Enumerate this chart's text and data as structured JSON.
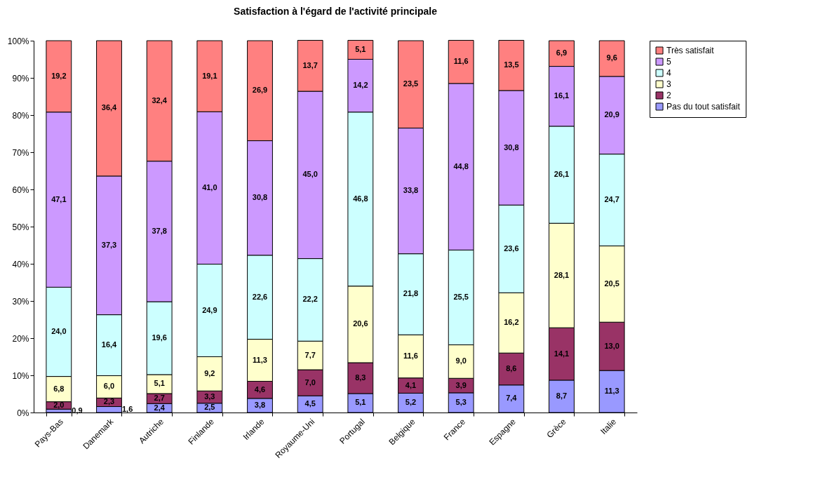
{
  "chart_data": {
    "type": "bar",
    "title": "Satisfaction à l'égard de l'activité principale",
    "stacked": true,
    "legend": "right",
    "categories": [
      "Pays-Bas",
      "Danemark",
      "Autriche",
      "Finlande",
      "Irlande",
      "Royaume-Uni",
      "Portugal",
      "Belgique",
      "France",
      "Espagne",
      "Grèce",
      "Italie"
    ],
    "ylim": [
      0,
      100
    ],
    "yticks": [
      {
        "value": 0,
        "label": "0%"
      },
      {
        "value": 10,
        "label": "10%"
      },
      {
        "value": 20,
        "label": "20%"
      },
      {
        "value": 30,
        "label": "30%"
      },
      {
        "value": 40,
        "label": "40%"
      },
      {
        "value": 50,
        "label": "50%"
      },
      {
        "value": 60,
        "label": "60%"
      },
      {
        "value": 70,
        "label": "70%"
      },
      {
        "value": 80,
        "label": "80%"
      },
      {
        "value": 90,
        "label": "90%"
      },
      {
        "value": 100,
        "label": "100%"
      }
    ],
    "series": [
      {
        "name": "Pas du tout satisfait",
        "color": "#9999ff",
        "values": [
          0.9,
          1.6,
          2.4,
          2.5,
          3.8,
          4.5,
          5.1,
          5.2,
          5.3,
          7.4,
          8.7,
          11.3
        ],
        "value_labels": [
          "0,9",
          "1,6",
          "2,4",
          "2,5",
          "3,8",
          "4,5",
          "5,1",
          "5,2",
          "5,3",
          "7,4",
          "8,7",
          "11,3"
        ]
      },
      {
        "name": "2",
        "color": "#993366",
        "values": [
          2.0,
          2.3,
          2.7,
          3.3,
          4.6,
          7.0,
          8.3,
          4.1,
          3.9,
          8.6,
          14.1,
          13.0
        ],
        "value_labels": [
          "2,0",
          "2,3",
          "2,7",
          "3,3",
          "4,6",
          "7,0",
          "8,3",
          "4,1",
          "3,9",
          "8,6",
          "14,1",
          "13,0"
        ]
      },
      {
        "name": "3",
        "color": "#ffffcc",
        "values": [
          6.8,
          6.0,
          5.1,
          9.2,
          11.3,
          7.7,
          20.6,
          11.6,
          9.0,
          16.2,
          28.1,
          20.5
        ],
        "value_labels": [
          "6,8",
          "6,0",
          "5,1",
          "9,2",
          "11,3",
          "7,7",
          "20,6",
          "11,6",
          "9,0",
          "16,2",
          "28,1",
          "20,5"
        ]
      },
      {
        "name": "4",
        "color": "#ccffff",
        "values": [
          24.0,
          16.4,
          19.6,
          24.9,
          22.6,
          22.2,
          46.8,
          21.8,
          25.5,
          23.6,
          26.1,
          24.7
        ],
        "value_labels": [
          "24,0",
          "16,4",
          "19,6",
          "24,9",
          "22,6",
          "22,2",
          "46,8",
          "21,8",
          "25,5",
          "23,6",
          "26,1",
          "24,7"
        ]
      },
      {
        "name": "5",
        "color": "#cc99ff",
        "values": [
          47.1,
          37.3,
          37.8,
          41.0,
          30.8,
          45.0,
          14.2,
          33.8,
          44.8,
          30.8,
          16.1,
          20.9
        ],
        "value_labels": [
          "47,1",
          "37,3",
          "37,8",
          "41,0",
          "30,8",
          "45,0",
          "14,2",
          "33,8",
          "44,8",
          "30,8",
          "16,1",
          "20,9"
        ]
      },
      {
        "name": "Très satisfait",
        "color": "#ff8080",
        "values": [
          19.2,
          36.4,
          32.4,
          19.1,
          26.9,
          13.7,
          5.1,
          23.5,
          11.6,
          13.5,
          6.9,
          9.6
        ],
        "value_labels": [
          "19,2",
          "36,4",
          "32,4",
          "19,1",
          "26,9",
          "13,7",
          "5,1",
          "23,5",
          "11,6",
          "13,5",
          "6,9",
          "9,6"
        ]
      }
    ]
  }
}
